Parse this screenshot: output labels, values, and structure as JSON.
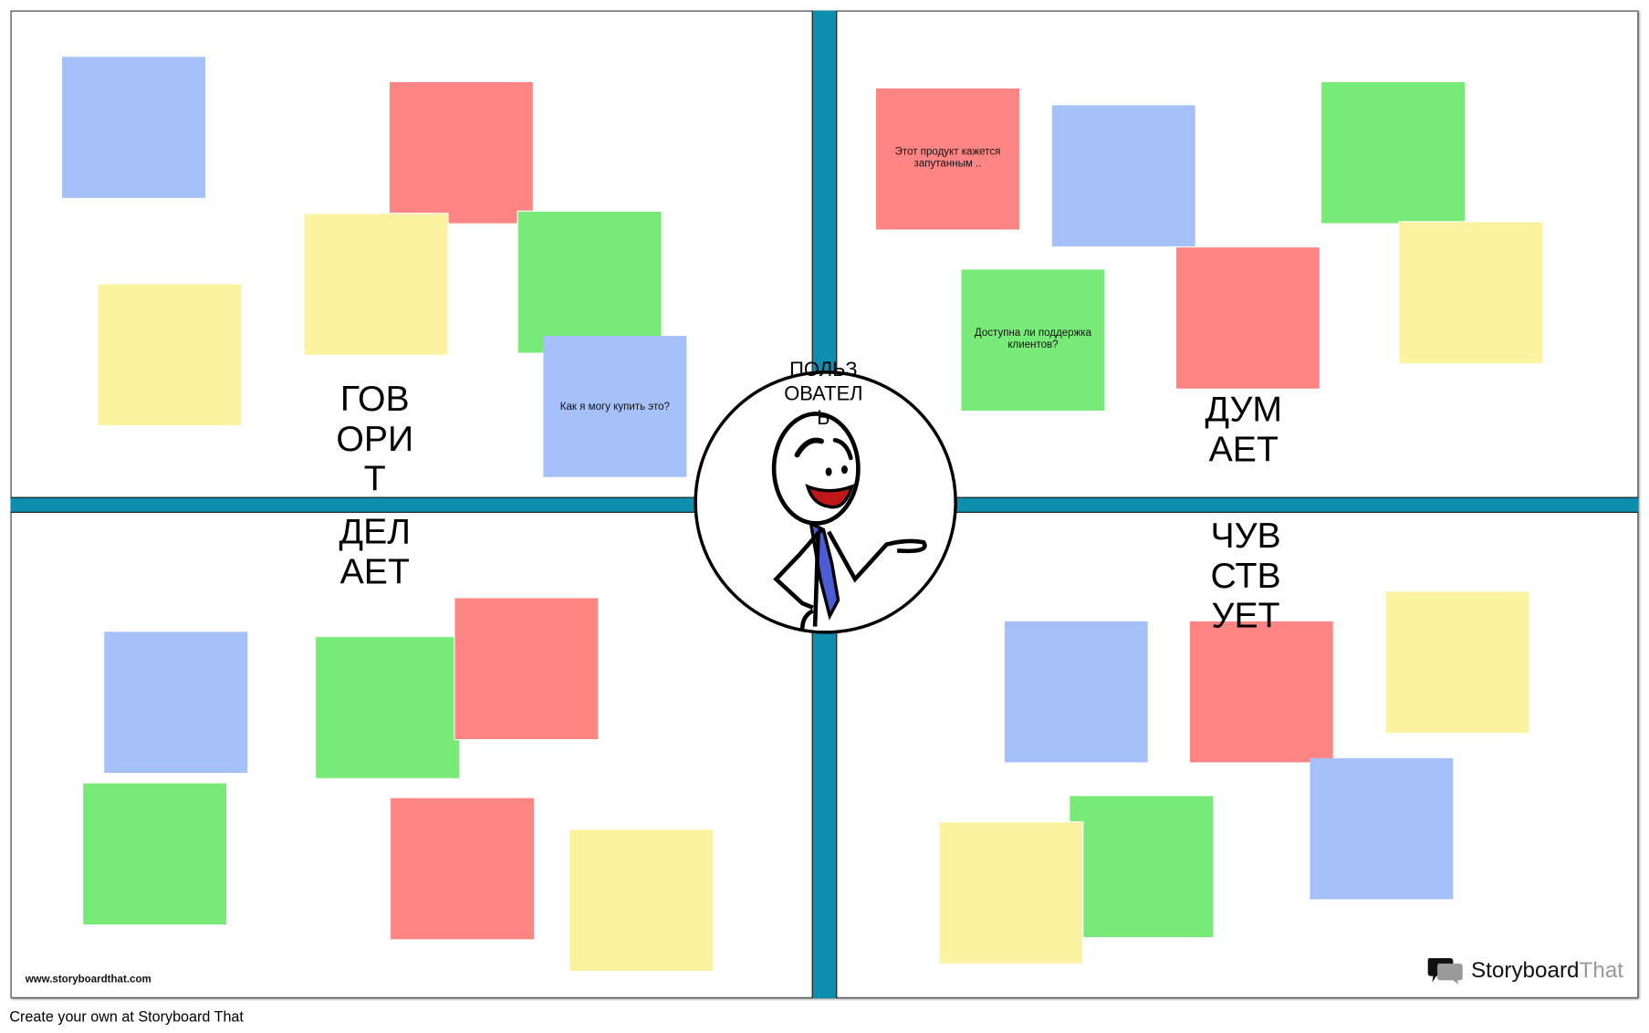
{
  "colors": {
    "bar": "#0e8eae",
    "blue": "#a6c1fa",
    "red": "#ff8585",
    "yellow": "#fbf3a0",
    "green": "#77ea77"
  },
  "quadrants": {
    "says": "ГОВОРИТ",
    "does": "ДЕЛАЕТ",
    "thinks": "ДУМАЕТ",
    "feels": "ЧУВСТВУЕТ"
  },
  "center": {
    "label": "ПОЛЬЗОВАТЕЛЬ",
    "icon": "smiling-stick-figure-with-tie"
  },
  "notes": {
    "says_question": "Как я могу купить это?",
    "thinks_confused": "Этот продукт кажется запутанным ..",
    "thinks_support": "Доступна ли поддержка клиентов?"
  },
  "watermark": "www.storyboardthat.com",
  "logo": {
    "part1": "Storyboard",
    "part2": "That"
  },
  "footer": "Create your own at Storyboard That"
}
